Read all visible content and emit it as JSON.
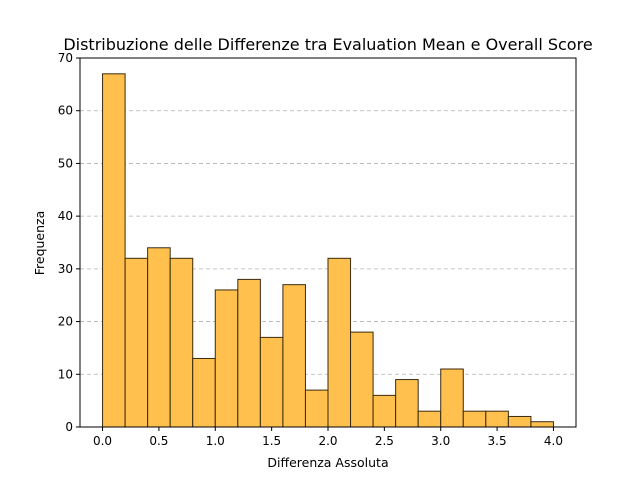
{
  "chart_data": {
    "type": "bar",
    "title": "Distribuzione delle Differenze tra Evaluation Mean e Overall Score",
    "xlabel": "Differenza Assoluta",
    "ylabel": "Frequenza",
    "bin_edges": [
      0.0,
      0.2,
      0.4,
      0.6,
      0.8,
      1.0,
      1.2,
      1.4,
      1.6,
      1.8,
      2.0,
      2.2,
      2.4,
      2.6,
      2.8,
      3.0,
      3.2,
      3.4,
      3.6,
      3.8,
      4.0
    ],
    "values": [
      67,
      32,
      34,
      32,
      13,
      26,
      28,
      17,
      27,
      7,
      32,
      18,
      6,
      9,
      3,
      11,
      3,
      3,
      2,
      1
    ],
    "xlim": [
      -0.2,
      4.2
    ],
    "ylim": [
      0,
      70
    ],
    "xticks": [
      "0.0",
      "0.5",
      "1.0",
      "1.5",
      "2.0",
      "2.5",
      "3.0",
      "3.5",
      "4.0"
    ],
    "yticks": [
      "0",
      "10",
      "20",
      "30",
      "40",
      "50",
      "60",
      "70"
    ],
    "grid": "y-dashed",
    "bar_color": "#ffc04d",
    "edge_color": "#3a2a10"
  }
}
